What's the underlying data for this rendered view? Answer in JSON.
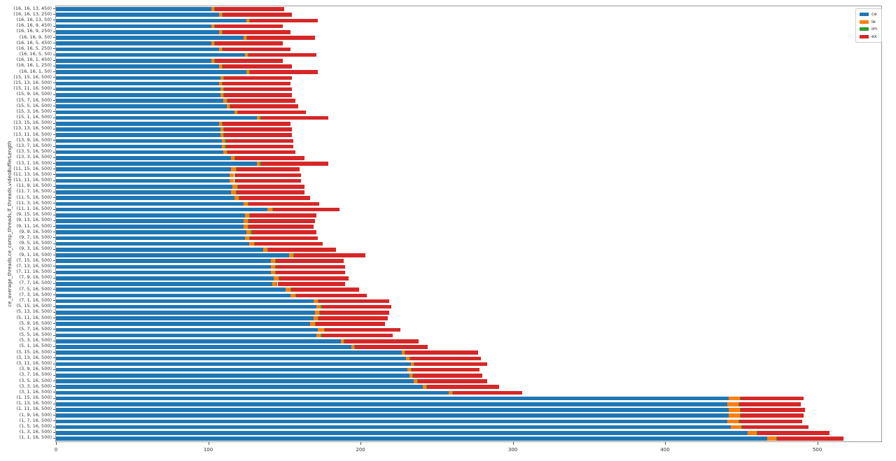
{
  "chart_data": {
    "type": "bar",
    "orientation": "horizontal",
    "stacked": true,
    "title": "",
    "xlabel": "",
    "ylabel": "ce_average_threads,ce_comp_threads,lf_threads,videoBufferLength",
    "xlim": [
      0,
      542
    ],
    "xticks": [
      0,
      100,
      200,
      300,
      400,
      500
    ],
    "grid": false,
    "legend_position": "upper right",
    "categories": [
      "(16, 16, 13, 450)",
      "(16, 16, 13, 250)",
      "(16, 16, 13, 50)",
      "(16, 16, 9, 450)",
      "(16, 16, 9, 250)",
      "(16, 16, 9, 50)",
      "(16, 16, 5, 450)",
      "(16, 16, 5, 250)",
      "(16, 16, 5, 50)",
      "(16, 16, 1, 450)",
      "(16, 16, 1, 250)",
      "(16, 16, 1, 50)",
      "(15, 15, 16, 500)",
      "(15, 13, 16, 500)",
      "(15, 11, 16, 500)",
      "(15, 9, 16, 500)",
      "(15, 7, 16, 500)",
      "(15, 5, 16, 500)",
      "(15, 3, 16, 500)",
      "(15, 1, 16, 500)",
      "(13, 15, 16, 500)",
      "(13, 13, 16, 500)",
      "(13, 11, 16, 500)",
      "(13, 9, 16, 500)",
      "(13, 7, 16, 500)",
      "(13, 5, 16, 500)",
      "(13, 3, 16, 500)",
      "(13, 1, 16, 500)",
      "(11, 15, 16, 500)",
      "(11, 13, 16, 500)",
      "(11, 11, 16, 500)",
      "(11, 9, 16, 500)",
      "(11, 7, 16, 500)",
      "(11, 5, 16, 500)",
      "(11, 3, 16, 500)",
      "(11, 1, 16, 500)",
      "(9, 15, 16, 500)",
      "(9, 13, 16, 500)",
      "(9, 11, 16, 500)",
      "(9, 9, 16, 500)",
      "(9, 7, 16, 500)",
      "(9, 5, 16, 500)",
      "(9, 3, 16, 500)",
      "(9, 1, 16, 500)",
      "(7, 15, 16, 500)",
      "(7, 13, 16, 500)",
      "(7, 11, 16, 500)",
      "(7, 9, 16, 500)",
      "(7, 7, 16, 500)",
      "(7, 5, 16, 500)",
      "(7, 3, 16, 500)",
      "(7, 1, 16, 500)",
      "(5, 15, 16, 500)",
      "(5, 13, 16, 500)",
      "(5, 11, 16, 500)",
      "(5, 9, 16, 500)",
      "(5, 7, 16, 500)",
      "(5, 5, 16, 500)",
      "(5, 3, 16, 500)",
      "(5, 1, 16, 500)",
      "(3, 15, 16, 500)",
      "(3, 13, 16, 500)",
      "(3, 11, 16, 500)",
      "(3, 9, 16, 500)",
      "(3, 7, 16, 500)",
      "(3, 5, 16, 500)",
      "(3, 3, 16, 500)",
      "(3, 1, 16, 500)",
      "(1, 15, 16, 500)",
      "(1, 13, 16, 500)",
      "(1, 11, 16, 500)",
      "(1, 9, 16, 500)",
      "(1, 7, 16, 500)",
      "(1, 5, 16, 500)",
      "(1, 3, 16, 500)",
      "(1, 1, 16, 500)"
    ],
    "series": [
      {
        "name": "ce",
        "color": "#1f77b4",
        "values": [
          102,
          107,
          125,
          102,
          107,
          123,
          102,
          107,
          124,
          102,
          107,
          125,
          108,
          107,
          108,
          108,
          110,
          112,
          117,
          132,
          107,
          108,
          108,
          109,
          109,
          110,
          115,
          132,
          115,
          114,
          114,
          116,
          115,
          117,
          123,
          139,
          124,
          123,
          123,
          125,
          124,
          127,
          136,
          153,
          141,
          141,
          141,
          143,
          142,
          151,
          154,
          169,
          171,
          170,
          169,
          167,
          172,
          171,
          187,
          194,
          227,
          230,
          233,
          231,
          232,
          235,
          241,
          258,
          442,
          441,
          442,
          442,
          441,
          443,
          454,
          467
        ]
      },
      {
        "name": "le",
        "color": "#ff7f0e",
        "values": [
          2,
          2,
          2,
          2,
          2,
          2,
          2,
          2,
          2,
          2,
          2,
          2,
          2,
          2,
          2,
          2,
          2,
          2,
          2,
          2,
          2,
          2,
          2,
          2,
          2,
          2,
          2,
          2,
          3,
          3,
          3,
          3,
          3,
          3,
          3,
          3,
          3,
          3,
          3,
          3,
          3,
          3,
          3,
          3,
          3,
          3,
          3,
          3,
          3,
          3,
          3,
          3,
          3,
          3,
          3,
          3,
          4,
          3,
          2,
          2,
          2,
          2,
          2,
          2,
          2,
          2,
          2,
          2,
          7,
          7,
          7,
          7,
          7,
          7,
          6,
          6
        ]
      },
      {
        "name": "im",
        "color": "#2ca02c",
        "values": 0.5
      },
      {
        "name": "ex",
        "color": "#d62728",
        "values": [
          45.5,
          45.5,
          44.5,
          44.5,
          44.5,
          44.5,
          44.5,
          44.5,
          44.5,
          44.5,
          45.5,
          44.5,
          44.5,
          44.5,
          44.5,
          44.5,
          44.5,
          44.5,
          44.5,
          44.5,
          44.5,
          44.5,
          44.5,
          44.5,
          44.5,
          44.5,
          45.5,
          44.5,
          41.5,
          43.5,
          43.5,
          43.5,
          44.5,
          46.5,
          46.5,
          43.5,
          43.5,
          43.5,
          42.5,
          42.5,
          44.5,
          44.5,
          44.5,
          46.5,
          44.5,
          45.5,
          45.5,
          45.5,
          44.5,
          44.5,
          46.5,
          46.5,
          45.5,
          45.5,
          45.5,
          45.5,
          49.5,
          46.5,
          48.5,
          47.5,
          47.5,
          46.5,
          47.5,
          44.5,
          45.5,
          45.5,
          47.5,
          45.5,
          41.5,
          40.5,
          42.5,
          41.5,
          41.5,
          43.5,
          47.5,
          43.5
        ]
      }
    ]
  }
}
